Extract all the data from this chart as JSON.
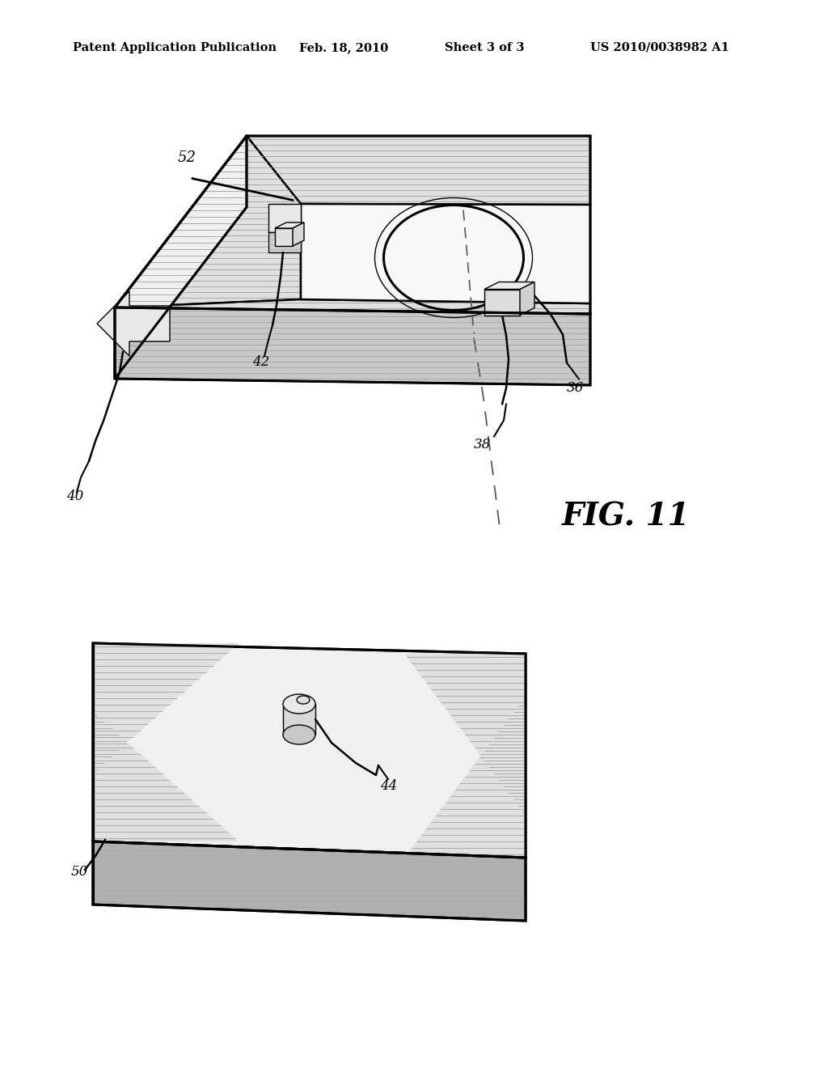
{
  "bg_color": "#ffffff",
  "header_text": "Patent Application Publication",
  "header_date": "Feb. 18, 2010",
  "header_sheet": "Sheet 3 of 3",
  "header_patent": "US 2010/0038982 A1",
  "fig_label": "FIG. 11",
  "hatch_color": "#888888",
  "line_color": "#000000",
  "face_light": "#f5f5f5",
  "face_mid": "#e0e0e0",
  "face_dark": "#c8c8c8",
  "face_darker": "#b0b0b0"
}
